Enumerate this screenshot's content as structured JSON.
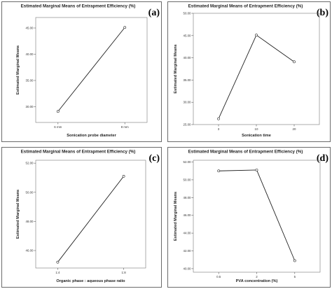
{
  "chart_data": [
    {
      "type": "line",
      "panel_label": "(a)",
      "title": "Estimated Marginal Means of Entrapment Efficiency (%)",
      "xlabel": "Sonication probe diameter",
      "ylabel": "Estimated Marginal Means",
      "categories": [
        "6 mm",
        "8 mm"
      ],
      "values": [
        29.1,
        45.1
      ],
      "ylim": [
        27.0,
        47.0
      ],
      "yticks": [
        30,
        35,
        40,
        45
      ],
      "ytick_labels": [
        "30.00",
        "35.00",
        "40.00",
        "45.00"
      ]
    },
    {
      "type": "line",
      "panel_label": "(b)",
      "title": "Estimated Marginal Means of Entrapment Efficiency (%)",
      "xlabel": "Sonication time",
      "ylabel": "Estimated Marginal Means",
      "categories": [
        "3",
        "10",
        "20"
      ],
      "values": [
        26.3,
        45.1,
        39.1
      ],
      "ylim": [
        25.0,
        50.0
      ],
      "yticks": [
        25,
        30,
        35,
        40,
        45,
        50
      ],
      "ytick_labels": [
        "25.00",
        "30.00",
        "35.00",
        "40.00",
        "45.00",
        "50.00"
      ]
    },
    {
      "type": "line",
      "panel_label": "(c)",
      "title": "Estimated Marginal Means of Entrapment Efficiency (%)",
      "xlabel": "Organic phase : aqueous phase ratio",
      "ylabel": "Estimated Marginal Means",
      "categories": [
        "1:4",
        "1:8"
      ],
      "values": [
        45.2,
        51.1
      ],
      "ylim": [
        44.8,
        52.2
      ],
      "yticks": [
        46,
        48,
        50,
        52
      ],
      "ytick_labels": [
        "46.00",
        "48.00",
        "50.00",
        "52.00"
      ]
    },
    {
      "type": "line",
      "panel_label": "(d)",
      "title": "Estimated Marginal Means of Entrapment Efficiency (%)",
      "xlabel": "PVA concentration (%)",
      "ylabel": "Estimated Marginal Means",
      "categories": [
        "0.5",
        "2",
        "5"
      ],
      "values": [
        51.0,
        51.1,
        40.9
      ],
      "ylim": [
        39.6,
        52.2
      ],
      "yticks": [
        40,
        42,
        44,
        46,
        48,
        50,
        52
      ],
      "ytick_labels": [
        "40.00",
        "42.00",
        "44.00",
        "46.00",
        "48.00",
        "50.00",
        "52.00"
      ]
    }
  ]
}
